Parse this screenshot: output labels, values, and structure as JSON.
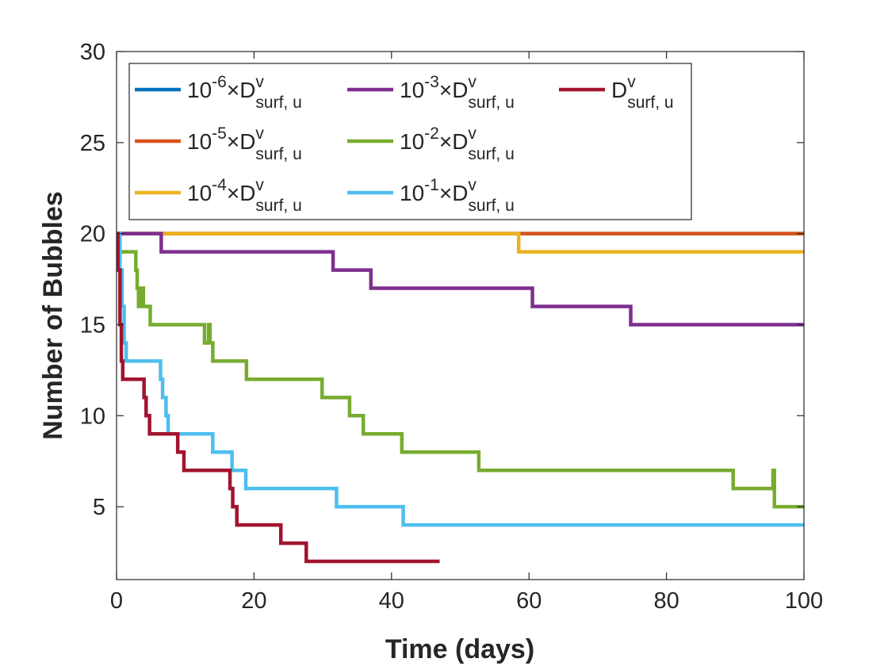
{
  "chart_data": {
    "type": "line",
    "step": true,
    "xlabel": "Time (days)",
    "ylabel": "Number of Bubbles",
    "xlim": [
      0,
      100
    ],
    "xticks": [
      0,
      20,
      40,
      60,
      80,
      100
    ],
    "ylim": [
      1,
      30
    ],
    "yticks": [
      5,
      10,
      15,
      20,
      25,
      30
    ],
    "legend": {
      "location": "northwest",
      "columns": 3
    },
    "series": [
      {
        "name": "10^{-6}×D^{v}_{surf, u}",
        "color": "#0072BD",
        "x": [
          0,
          100
        ],
        "values": [
          20,
          20
        ]
      },
      {
        "name": "10^{-5}×D^{v}_{surf, u}",
        "color": "#D95319",
        "x": [
          0,
          100
        ],
        "values": [
          20,
          20
        ]
      },
      {
        "name": "10^{-4}×D^{v}_{surf, u}",
        "color": "#EDB120",
        "x": [
          0,
          58.5,
          100
        ],
        "values": [
          20,
          19,
          19
        ]
      },
      {
        "name": "10^{-3}×D^{v}_{surf, u}",
        "color": "#7E2F8E",
        "x": [
          0,
          6.5,
          31.5,
          37,
          60.5,
          74.8,
          100
        ],
        "values": [
          20,
          19,
          18,
          17,
          16,
          15,
          15
        ]
      },
      {
        "name": "10^{-2}×D^{v}_{surf, u}",
        "color": "#77AC30",
        "x": [
          0,
          0.4,
          2.8,
          3.0,
          3.2,
          3.6,
          3.9,
          4.9,
          12.8,
          13.4,
          13.6,
          14,
          18.9,
          29.9,
          33.9,
          35.9,
          41.5,
          52.7,
          89.7,
          95.5,
          95.7,
          100
        ],
        "values": [
          20,
          19,
          18,
          17,
          16,
          17,
          16,
          15,
          14,
          15,
          14,
          13,
          12,
          11,
          10,
          9,
          8,
          7,
          6,
          7,
          5,
          5
        ]
      },
      {
        "name": "10^{-1}×D^{v}_{surf, u}",
        "color": "#4DBEEE",
        "x": [
          0,
          0.5,
          0.8,
          1.1,
          1.4,
          6.4,
          6.7,
          7.2,
          7.5,
          14,
          16.8,
          18.8,
          32,
          41.7,
          100
        ],
        "values": [
          20,
          18,
          16,
          14,
          13,
          12,
          11,
          10,
          9,
          8,
          7,
          6,
          5,
          4,
          4
        ]
      },
      {
        "name": "D^{v}_{surf, u}",
        "color": "#A2142F",
        "x": [
          0,
          0.2,
          0.5,
          0.7,
          0.9,
          4,
          4.3,
          4.8,
          8.9,
          9.8,
          16.5,
          16.9,
          17.5,
          23.9,
          27.6,
          47
        ],
        "values": [
          20,
          18,
          15,
          13,
          12,
          11,
          10,
          9,
          8,
          7,
          6,
          5,
          4,
          3,
          2,
          2
        ]
      }
    ]
  }
}
